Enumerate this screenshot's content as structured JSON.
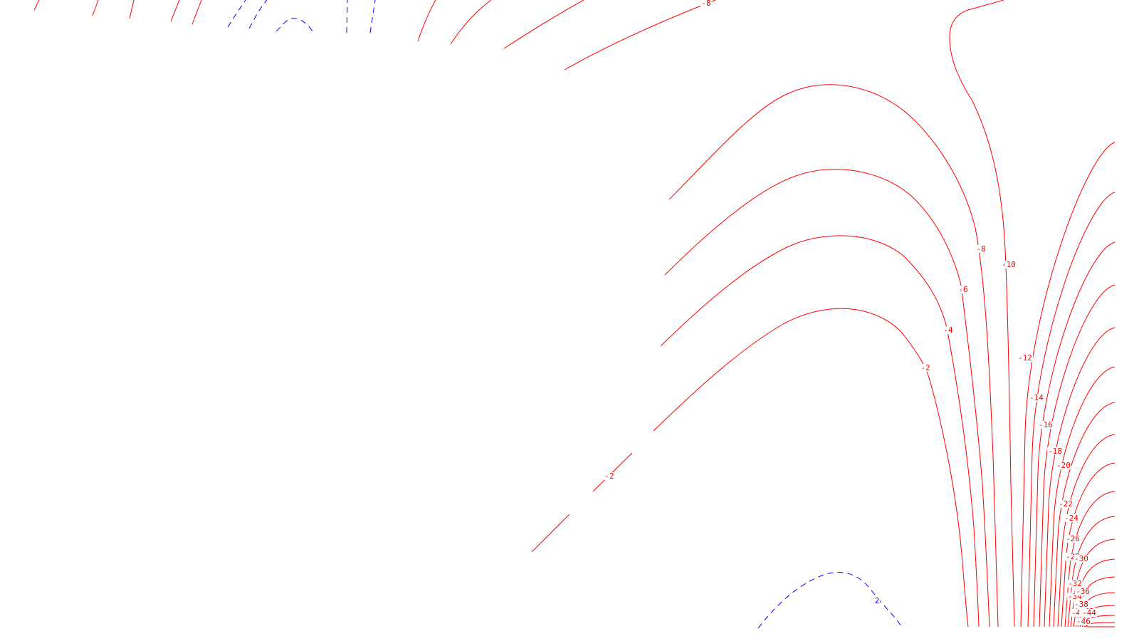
{
  "chart_data": {
    "type": "contour",
    "colors": {
      "negative": "#ff0000",
      "positive": "#0000ff",
      "background": "#ffffff"
    },
    "contour_styles": {
      "negative": "solid",
      "positive": "dashed"
    },
    "contour_labels": [
      "-8",
      "-8",
      "-10",
      "-6",
      "-4",
      "-12",
      "-2",
      "-14",
      "-16",
      "-18",
      "-20",
      "-2",
      "-22",
      "-24",
      "-26",
      "-28",
      "-30",
      "-32",
      "-34",
      "-36",
      "-38",
      "-40",
      "-42",
      "-44",
      "-46",
      "2"
    ]
  }
}
